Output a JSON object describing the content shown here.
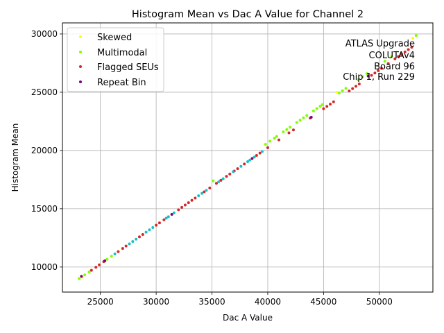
{
  "chart_data": {
    "type": "scatter",
    "title": "Histogram Mean vs Dac A Value for Channel 2",
    "xlabel": "Dac A Value",
    "ylabel": "Histogram Mean",
    "xlim": [
      21600,
      54800
    ],
    "ylim": [
      7850,
      30950
    ],
    "xticks": [
      25000,
      30000,
      35000,
      40000,
      45000,
      50000
    ],
    "yticks": [
      10000,
      15000,
      20000,
      25000,
      30000
    ],
    "xtick_labels": [
      "25000",
      "30000",
      "35000",
      "40000",
      "45000",
      "50000"
    ],
    "ytick_labels": [
      "10000",
      "15000",
      "20000",
      "25000",
      "30000"
    ],
    "grid": true,
    "legend_position": "upper-left",
    "annotation": [
      "ATLAS Upgrade",
      "COLUTAv4",
      "Board 96",
      "Chip 1, Run 229"
    ],
    "series": [
      {
        "name": "Skewed",
        "color": "#ffff00",
        "x": [
          23400,
          46200,
          53000
        ],
        "y": [
          9140,
          25000,
          29650
        ]
      },
      {
        "name": "Multimodal",
        "color": "#80ff00",
        "x": [
          23100,
          23600,
          24000,
          25600,
          26000,
          35100,
          39800,
          40200,
          40600,
          40800,
          41400,
          41700,
          42000,
          42600,
          42900,
          43200,
          43500,
          44100,
          44400,
          44700,
          44900,
          46400,
          46700,
          47000,
          48100,
          48500,
          48900,
          50500,
          51100,
          53300
        ],
        "y": [
          9000,
          9320,
          9580,
          10660,
          10920,
          17400,
          20530,
          20800,
          21060,
          21200,
          21600,
          21800,
          22000,
          22400,
          22600,
          22800,
          23000,
          23400,
          23600,
          23800,
          23930,
          24930,
          25130,
          25330,
          26060,
          26330,
          26600,
          27660,
          28060,
          29860
        ]
      },
      {
        "name": "Flagged SEUs",
        "color": "#d62728",
        "x": [
          24200,
          24600,
          24900,
          25300,
          26600,
          27000,
          27300,
          28500,
          28800,
          30000,
          30300,
          30700,
          32000,
          32300,
          32600,
          32900,
          33200,
          33500,
          34300,
          34800,
          35400,
          35800,
          36300,
          36600,
          37000,
          37300,
          37900,
          39000,
          39300,
          40000,
          41000,
          41900,
          42300,
          43800,
          45000,
          45300,
          45600,
          45900,
          47300,
          47600,
          47900,
          48200,
          49300,
          49600,
          49900,
          50200,
          50800,
          51400,
          51700,
          52000,
          52300,
          52600,
          52900
        ],
        "y": [
          9720,
          9980,
          10190,
          10460,
          11320,
          11590,
          11800,
          12590,
          12790,
          13590,
          13790,
          14050,
          14910,
          15120,
          15320,
          15520,
          15720,
          15920,
          16450,
          16780,
          17180,
          17440,
          17780,
          17980,
          18240,
          18440,
          18840,
          19580,
          19780,
          20240,
          20910,
          21510,
          21770,
          22780,
          23580,
          23780,
          23980,
          24180,
          25110,
          25310,
          25510,
          25710,
          26450,
          26650,
          26850,
          27050,
          27460,
          27860,
          28060,
          28260,
          28460,
          28660,
          28860
        ]
      },
      {
        "name": "Repeat Bin",
        "color": "#7f007f",
        "x": [
          23300,
          25400,
          31400,
          38600,
          43900,
          49000
        ],
        "y": [
          9200,
          10530,
          14520,
          19310,
          22850,
          26390
        ]
      },
      {
        "name": "",
        "color": "#17c0c8",
        "x": [
          26300,
          27600,
          27900,
          28200,
          29100,
          29400,
          29700,
          30900,
          31100,
          31600,
          33800,
          34100,
          34500,
          35600,
          36000,
          36900,
          37600,
          38200,
          38400,
          38800,
          39500
        ],
        "y": [
          11120,
          11990,
          12190,
          12390,
          12990,
          13190,
          13390,
          14190,
          14320,
          14650,
          16120,
          16320,
          16580,
          17310,
          17580,
          18180,
          18640,
          19040,
          19180,
          19440,
          19910
        ]
      }
    ]
  }
}
